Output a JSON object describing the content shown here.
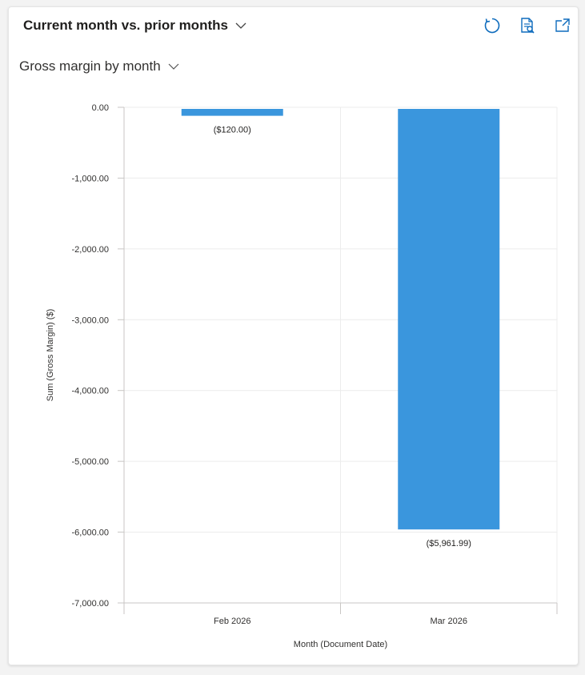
{
  "header": {
    "title": "Current month vs. prior months"
  },
  "view": {
    "label": "Gross margin by month"
  },
  "toolbar": {
    "items": [
      {
        "name": "refresh",
        "icon": "refresh-icon"
      },
      {
        "name": "view-records",
        "icon": "view-records-icon"
      },
      {
        "name": "expand",
        "icon": "pop-out-icon"
      }
    ]
  },
  "colors": {
    "bar": "#3a96dd",
    "grid": "#ececec",
    "axis": "#c8c6c4"
  },
  "chart_data": {
    "type": "bar",
    "categories": [
      "Feb 2026",
      "Mar 2026"
    ],
    "values": [
      -120.0,
      -5961.99
    ],
    "data_labels": [
      "($120.00)",
      "($5,961.99)"
    ],
    "xlabel": "Month (Document Date)",
    "ylabel": "Sum (Gross Margin) ($)",
    "ylim": [
      -7000,
      0
    ],
    "yticks": [
      0,
      -1000,
      -2000,
      -3000,
      -4000,
      -5000,
      -6000,
      -7000
    ],
    "ytick_labels": [
      "0.00",
      "-1,000.00",
      "-2,000.00",
      "-3,000.00",
      "-4,000.00",
      "-5,000.00",
      "-6,000.00",
      "-7,000.00"
    ],
    "grid": true,
    "legend": "none"
  }
}
